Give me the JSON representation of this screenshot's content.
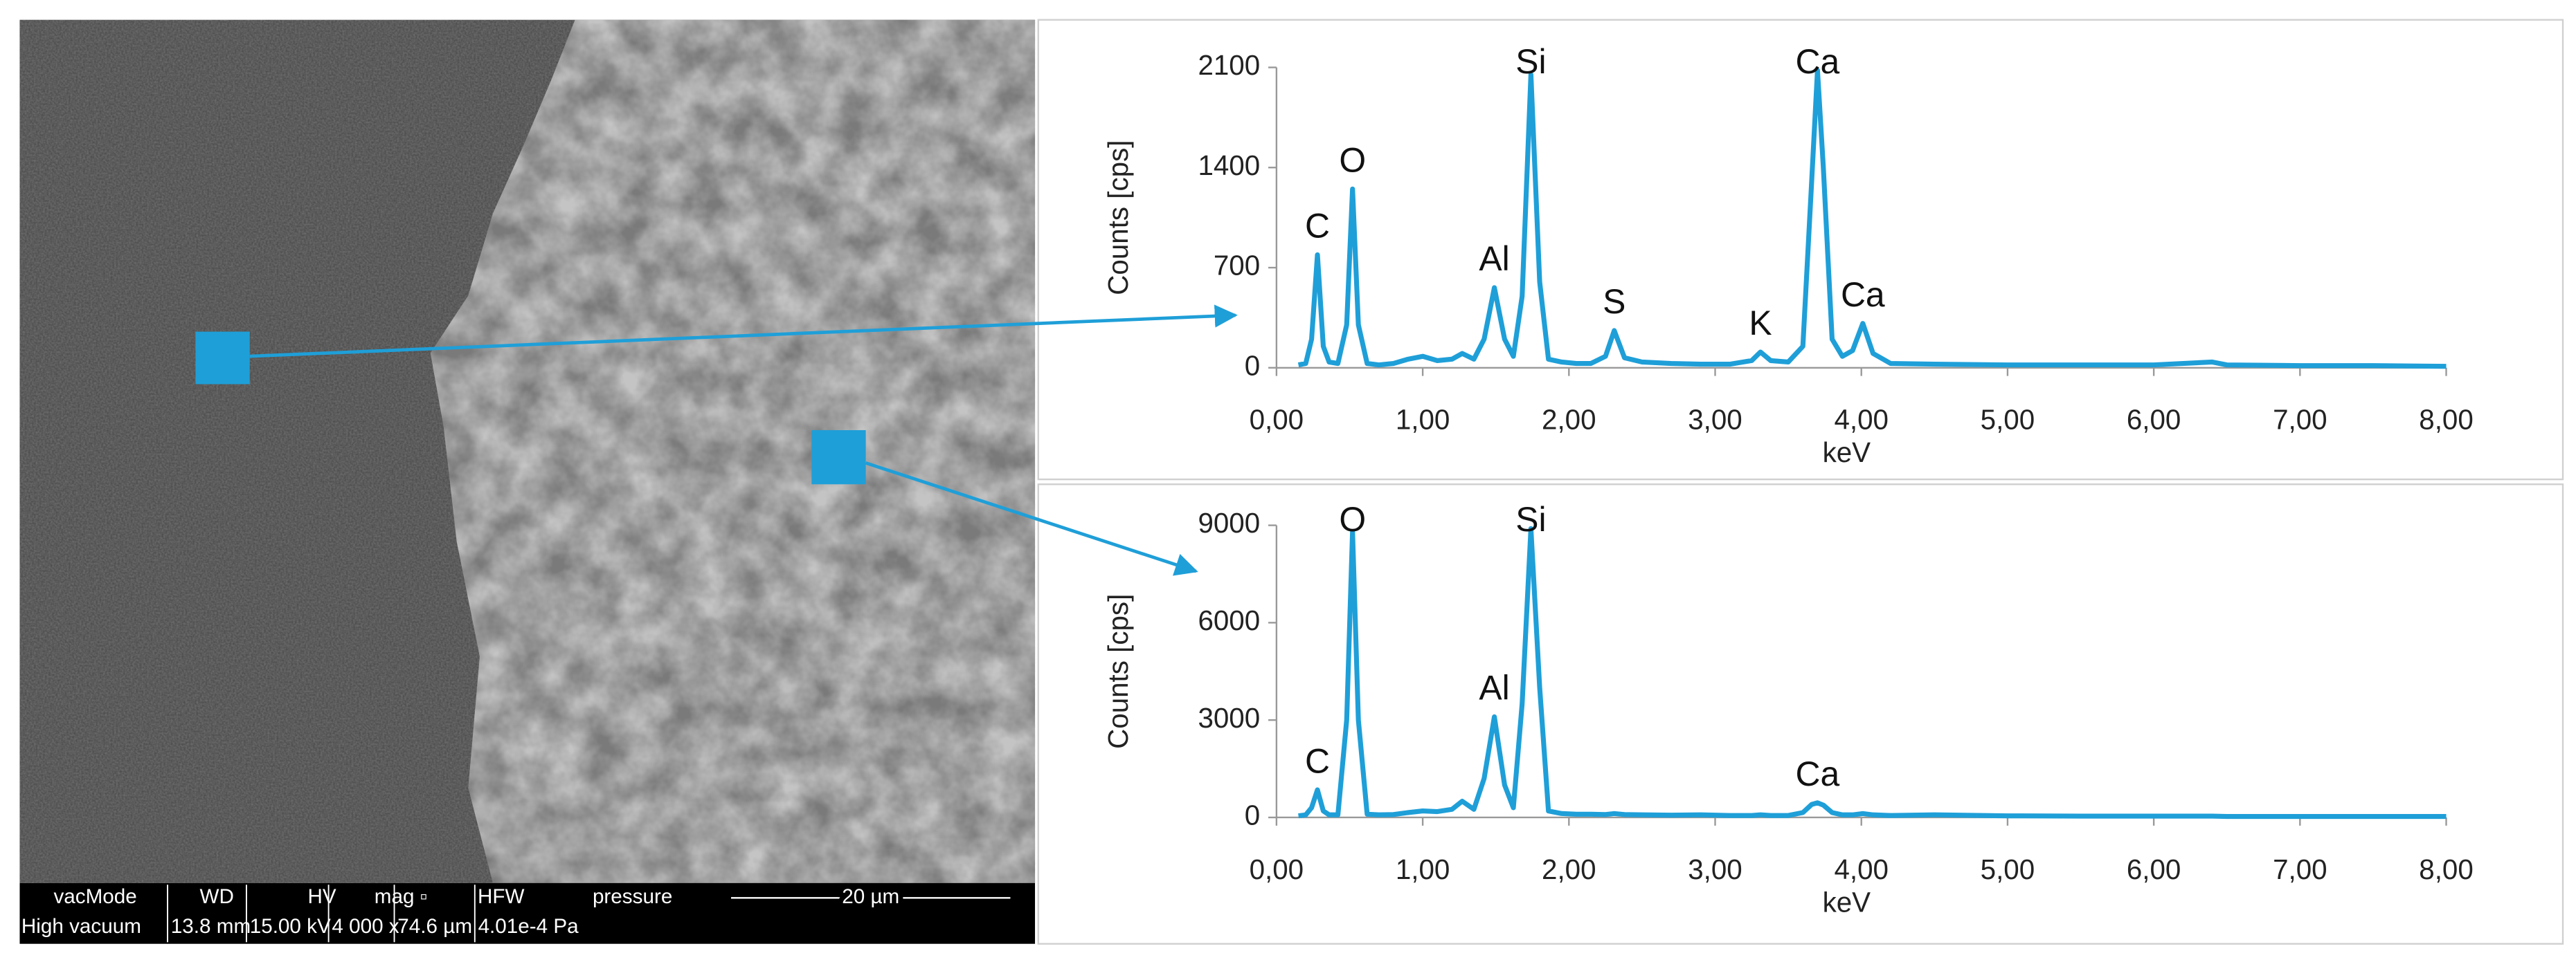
{
  "chart_data": [
    {
      "type": "line",
      "color": "#1f9fd8",
      "x_label": "keV",
      "y_label": "Counts [cps]",
      "xlim": [
        0,
        8
      ],
      "xticks": [
        {
          "value": 0,
          "label": "0,00"
        },
        {
          "value": 1,
          "label": "1,00"
        },
        {
          "value": 2,
          "label": "2,00"
        },
        {
          "value": 3,
          "label": "3,00"
        },
        {
          "value": 4,
          "label": "4,00"
        },
        {
          "value": 5,
          "label": "5,00"
        },
        {
          "value": 6,
          "label": "6,00"
        },
        {
          "value": 7,
          "label": "7,00"
        },
        {
          "value": 8,
          "label": "8,00"
        }
      ],
      "ylim": [
        0,
        2100
      ],
      "yticks": [
        0,
        700,
        1400,
        2100
      ],
      "x": [
        0.15,
        0.2,
        0.24,
        0.28,
        0.32,
        0.36,
        0.42,
        0.48,
        0.52,
        0.56,
        0.62,
        0.7,
        0.8,
        0.9,
        1.0,
        1.1,
        1.2,
        1.27,
        1.35,
        1.42,
        1.49,
        1.56,
        1.62,
        1.68,
        1.74,
        1.8,
        1.86,
        1.95,
        2.05,
        2.15,
        2.25,
        2.31,
        2.38,
        2.5,
        2.7,
        2.9,
        3.1,
        3.25,
        3.31,
        3.38,
        3.5,
        3.6,
        3.66,
        3.7,
        3.74,
        3.8,
        3.87,
        3.94,
        4.01,
        4.08,
        4.2,
        4.5,
        5,
        5.5,
        6,
        6.4,
        6.5,
        7,
        7.5,
        8
      ],
      "values": [
        20,
        30,
        200,
        790,
        150,
        40,
        30,
        300,
        1250,
        300,
        30,
        20,
        30,
        60,
        80,
        50,
        60,
        100,
        60,
        200,
        560,
        200,
        80,
        500,
        2050,
        600,
        60,
        40,
        30,
        30,
        80,
        260,
        70,
        40,
        30,
        25,
        25,
        50,
        110,
        50,
        40,
        150,
        1300,
        2080,
        1400,
        200,
        80,
        120,
        310,
        100,
        30,
        25,
        20,
        20,
        20,
        40,
        20,
        15,
        15,
        10
      ],
      "annotations": [
        {
          "text": "C",
          "x": 0.28
        },
        {
          "text": "O",
          "x": 0.52
        },
        {
          "text": "Al",
          "x": 1.49
        },
        {
          "text": "Si",
          "x": 1.74
        },
        {
          "text": "S",
          "x": 2.31
        },
        {
          "text": "K",
          "x": 3.31
        },
        {
          "text": "Ca",
          "x": 3.7
        },
        {
          "text": "Ca",
          "x": 4.01
        }
      ]
    },
    {
      "type": "line",
      "color": "#1f9fd8",
      "x_label": "keV",
      "y_label": "Counts [cps]",
      "xlim": [
        0,
        8
      ],
      "xticks": [
        {
          "value": 0,
          "label": "0,00"
        },
        {
          "value": 1,
          "label": "1,00"
        },
        {
          "value": 2,
          "label": "2,00"
        },
        {
          "value": 3,
          "label": "3,00"
        },
        {
          "value": 4,
          "label": "4,00"
        },
        {
          "value": 5,
          "label": "5,00"
        },
        {
          "value": 6,
          "label": "6,00"
        },
        {
          "value": 7,
          "label": "7,00"
        },
        {
          "value": 8,
          "label": "8,00"
        }
      ],
      "ylim": [
        0,
        9000
      ],
      "yticks": [
        0,
        3000,
        6000,
        9000
      ],
      "x": [
        0.15,
        0.2,
        0.24,
        0.28,
        0.32,
        0.36,
        0.42,
        0.48,
        0.52,
        0.56,
        0.62,
        0.7,
        0.8,
        0.9,
        1.0,
        1.1,
        1.2,
        1.27,
        1.35,
        1.42,
        1.49,
        1.56,
        1.62,
        1.68,
        1.74,
        1.8,
        1.86,
        1.95,
        2.05,
        2.15,
        2.25,
        2.31,
        2.38,
        2.5,
        2.7,
        2.9,
        3.1,
        3.25,
        3.31,
        3.38,
        3.5,
        3.6,
        3.66,
        3.7,
        3.74,
        3.8,
        3.87,
        3.94,
        4.01,
        4.08,
        4.2,
        4.5,
        5,
        5.5,
        6,
        6.4,
        6.5,
        7,
        7.5,
        8
      ],
      "values": [
        50,
        80,
        300,
        850,
        200,
        80,
        80,
        3000,
        8800,
        3000,
        100,
        80,
        90,
        150,
        200,
        180,
        250,
        500,
        250,
        1200,
        3100,
        1000,
        300,
        3500,
        8900,
        4000,
        200,
        120,
        100,
        100,
        90,
        120,
        90,
        80,
        70,
        80,
        60,
        60,
        80,
        60,
        60,
        150,
        400,
        450,
        380,
        150,
        80,
        80,
        120,
        80,
        60,
        80,
        50,
        40,
        40,
        40,
        30,
        30,
        30,
        30
      ],
      "annotations": [
        {
          "text": "C",
          "x": 0.28
        },
        {
          "text": "O",
          "x": 0.52
        },
        {
          "text": "Al",
          "x": 1.49
        },
        {
          "text": "Si",
          "x": 1.74
        },
        {
          "text": "Ca",
          "x": 3.7
        }
      ]
    }
  ],
  "sem_image": {
    "headers": [
      "vacMode",
      "WD",
      "HV",
      "mag ▫",
      "HFW",
      "pressure"
    ],
    "values": [
      "High vacuum",
      "13.8 mm",
      "15.00 kV",
      "4 000 x",
      "74.6 µm",
      "4.01e-4 Pa"
    ],
    "scale_bar": "20 µm"
  }
}
